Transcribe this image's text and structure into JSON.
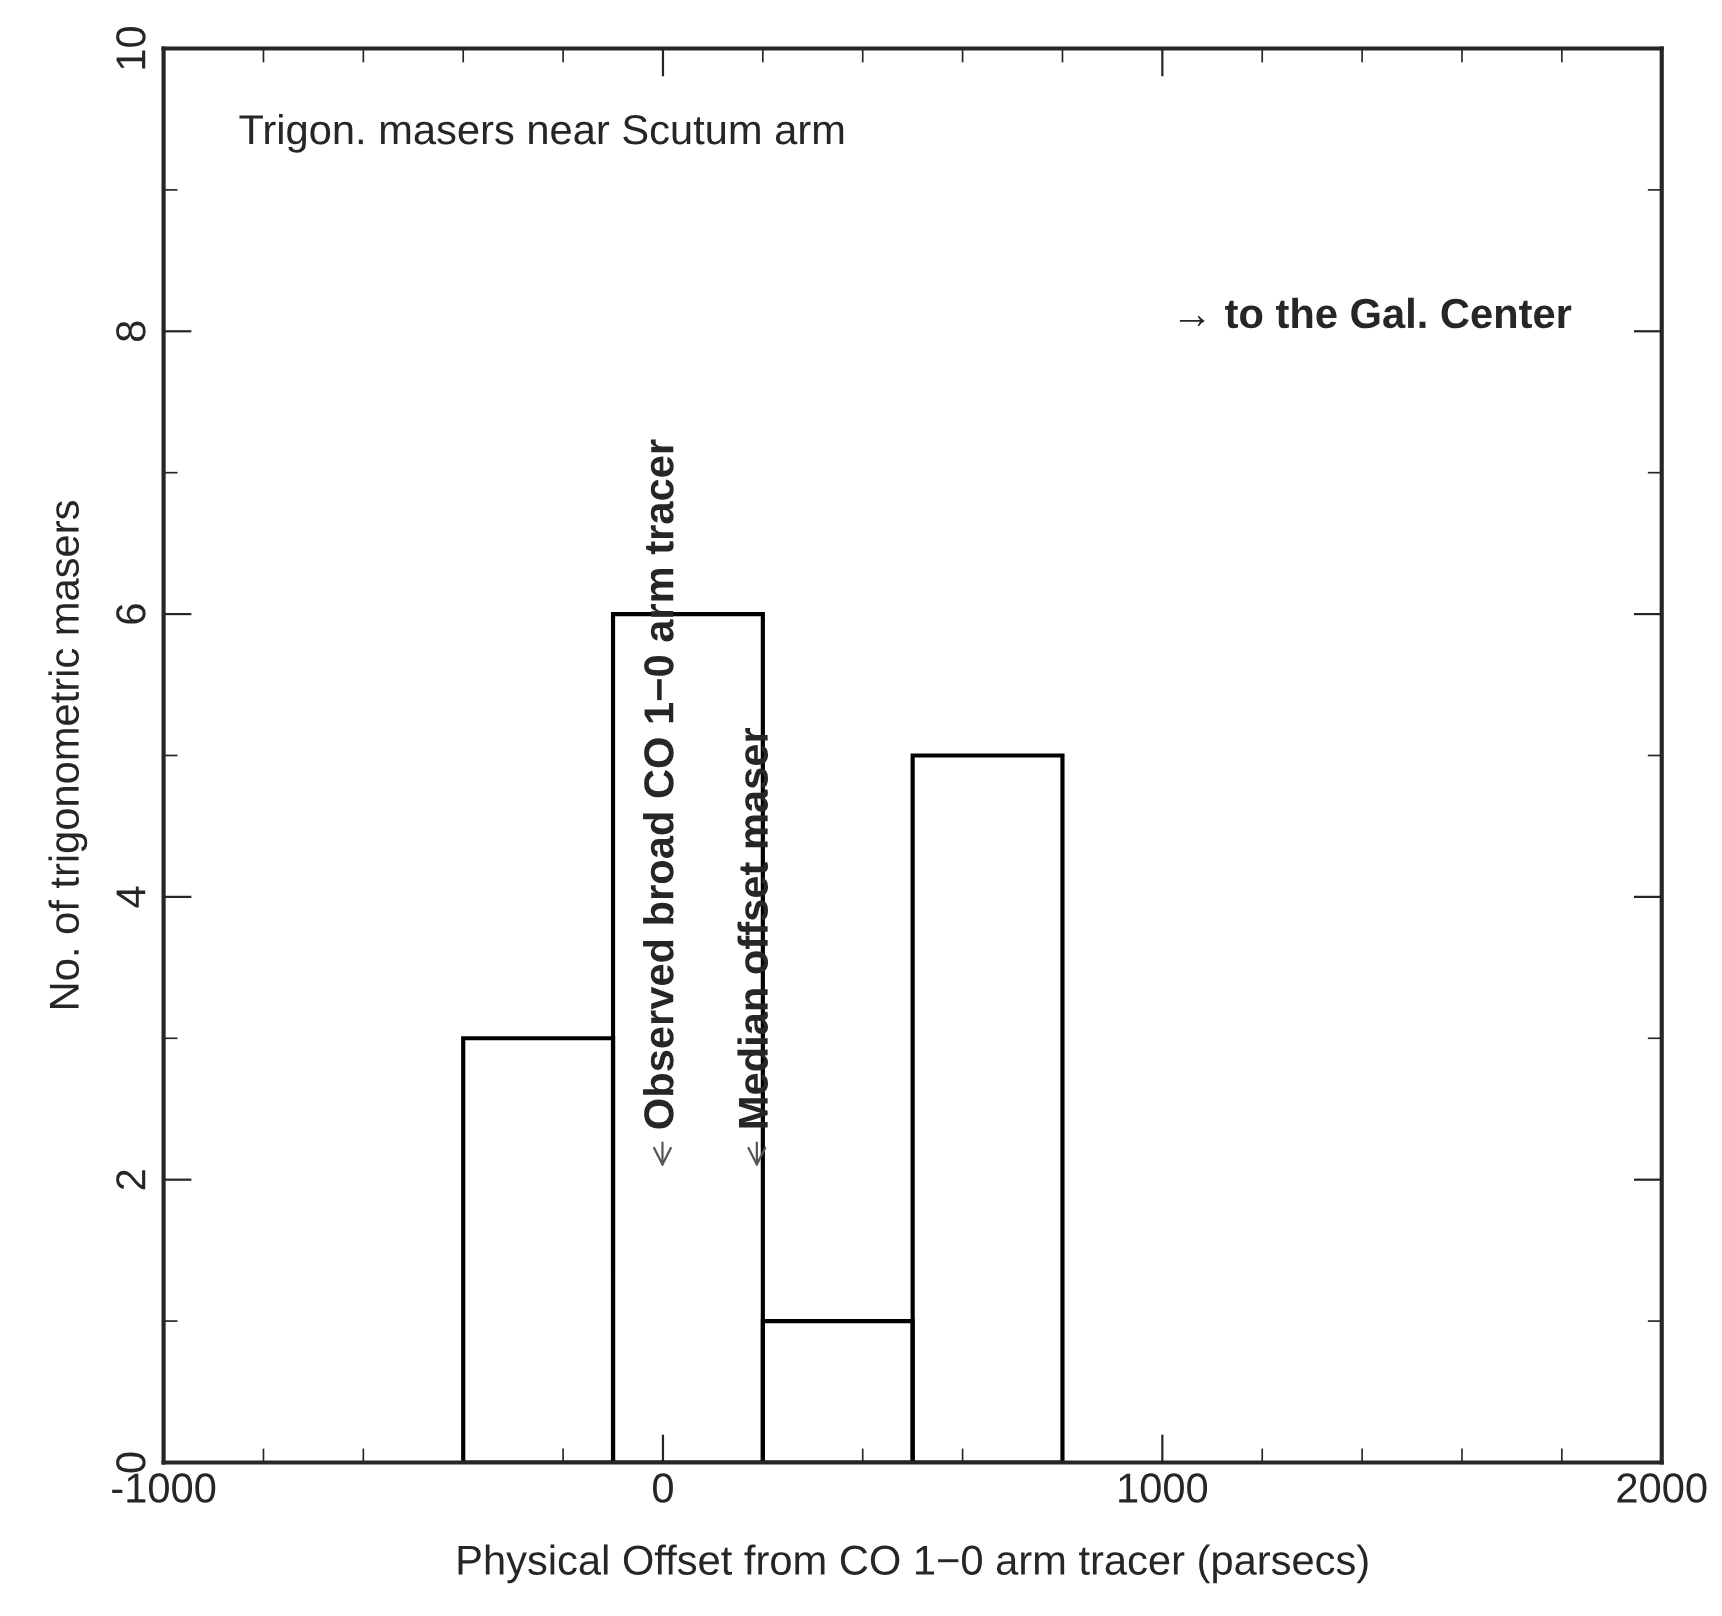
{
  "chart_data": {
    "type": "histogram",
    "title": "Trigon. masers near Scutum arm",
    "xlabel": "Physical Offset from CO 1−0 arm tracer (parsecs)",
    "ylabel": "No. of trigonometric masers",
    "bins": [
      -400,
      -100,
      200,
      500,
      800
    ],
    "values": [
      3,
      6,
      1,
      5
    ],
    "color": "#000000",
    "xlim": [
      -1000,
      2000
    ],
    "xticks": [
      -1000,
      0,
      1000,
      2000
    ],
    "ylim": [
      0,
      10
    ],
    "yticks": [
      0,
      2,
      4,
      6,
      8,
      10
    ],
    "grid": false,
    "annotations": [
      "Observed broad CO 1−0 arm tracer",
      "Median offset maser",
      "→ to the Gal. Center"
    ]
  }
}
